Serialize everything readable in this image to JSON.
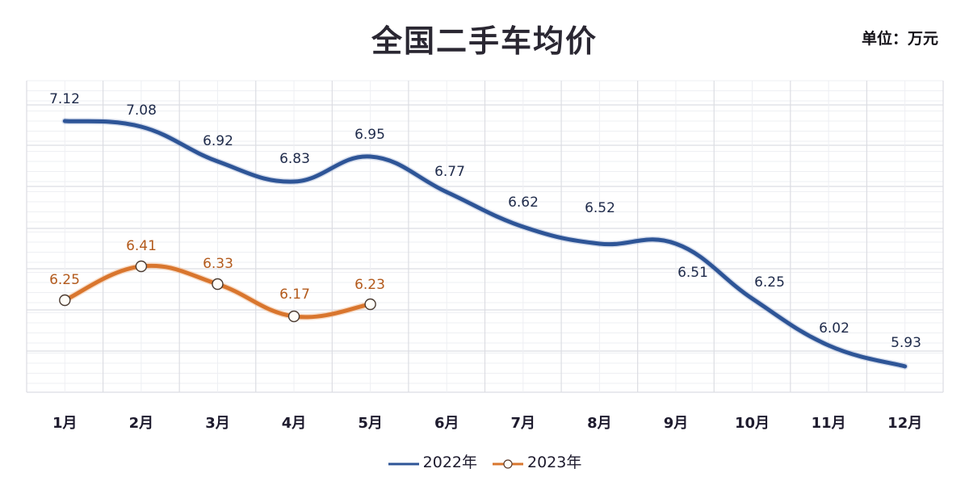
{
  "header": {
    "title": "全国二手车均价",
    "unit": "单位：万元"
  },
  "colors": {
    "series_2022": "#2e5597",
    "series_2023": "#d9762e",
    "label_2022": "#1e2a4a",
    "label_2023": "#b35a1c",
    "grid": "#dcdde3",
    "grid_minor": "#eeeff3"
  },
  "legend": {
    "items": [
      {
        "label": "2022年",
        "marker": "line"
      },
      {
        "label": "2023年",
        "marker": "line-circle"
      }
    ]
  },
  "chart_data": {
    "type": "line",
    "title": "全国二手车均价",
    "subtitle": "单位：万元",
    "xlabel": "",
    "ylabel": "万元",
    "categories": [
      "1月",
      "2月",
      "3月",
      "4月",
      "5月",
      "6月",
      "7月",
      "8月",
      "9月",
      "10月",
      "11月",
      "12月"
    ],
    "series": [
      {
        "name": "2022年",
        "values": [
          7.12,
          7.08,
          6.92,
          6.83,
          6.95,
          6.77,
          6.62,
          6.52,
          6.51,
          6.25,
          6.02,
          5.93
        ],
        "labels": [
          "7.12",
          "7.08",
          "6.92",
          "6.83",
          "6.95",
          "6.77",
          "6.62",
          "6.52",
          "6.51",
          "6.25",
          "6.02",
          "5.93"
        ],
        "smooth": true,
        "markers": false
      },
      {
        "name": "2023年",
        "values": [
          6.25,
          6.41,
          6.33,
          6.17,
          6.23
        ],
        "labels": [
          "6.25",
          "6.41",
          "6.33",
          "6.17",
          "6.23"
        ],
        "smooth": true,
        "markers": true
      }
    ],
    "grid": true,
    "y_axis_visible": false,
    "legend_position": "bottom"
  }
}
